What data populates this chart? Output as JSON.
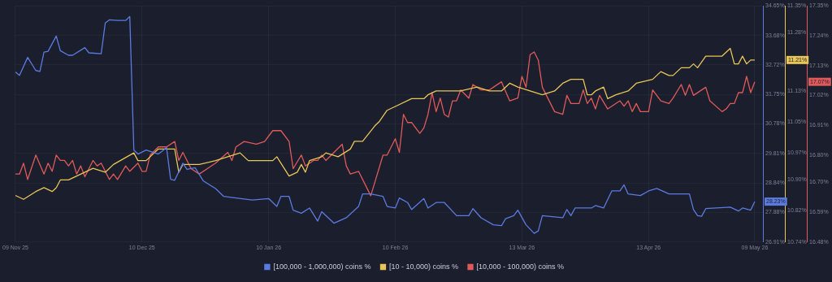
{
  "chart_data": {
    "type": "line",
    "xlim": [
      "2025-11-09",
      "2026-05-11"
    ],
    "xticks": [
      {
        "value": "2025-11-09",
        "label": "09 Nov 25"
      },
      {
        "value": "2025-12-10",
        "label": "10 Dec 25"
      },
      {
        "value": "2026-01-10",
        "label": "10 Jan 26"
      },
      {
        "value": "2026-02-10",
        "label": "10 Feb 26"
      },
      {
        "value": "2026-03-13",
        "label": "13 Mar 26"
      },
      {
        "value": "2026-04-13",
        "label": "13 Apr 26"
      },
      {
        "value": "2026-05-09",
        "label": "09 May 26"
      }
    ],
    "ylim": [
      26.91,
      34.65
    ],
    "yticks": [
      {
        "value": 26.91,
        "label": "26.91%"
      },
      {
        "value": 27.88,
        "label": "27.88%"
      },
      {
        "value": 28.84,
        "label": "28.84%"
      },
      {
        "value": 29.81,
        "label": "29.81%"
      },
      {
        "value": 30.78,
        "label": "30.78%"
      },
      {
        "value": 31.75,
        "label": "31.75%"
      },
      {
        "value": 32.72,
        "label": "32.72%"
      },
      {
        "value": 33.68,
        "label": "33.68%"
      },
      {
        "value": 34.65,
        "label": "34.65%"
      }
    ],
    "y2lim": [
      10.74,
      11.35
    ],
    "y2ticks": [
      {
        "value": 10.74,
        "label": "10.74%"
      },
      {
        "value": 10.82,
        "label": "10.82%"
      },
      {
        "value": 10.9,
        "label": "10.90%"
      },
      {
        "value": 10.97,
        "label": "10.97%"
      },
      {
        "value": 11.05,
        "label": "11.05%"
      },
      {
        "value": 11.13,
        "label": "11.13%"
      },
      {
        "value": 11.28,
        "label": "11.28%"
      },
      {
        "value": 11.35,
        "label": "11.35%"
      }
    ],
    "y3lim": [
      16.48,
      17.35
    ],
    "y3ticks": [
      {
        "value": 16.48,
        "label": "16.48%"
      },
      {
        "value": 16.59,
        "label": "16.59%"
      },
      {
        "value": 16.7,
        "label": "16.70%"
      },
      {
        "value": 16.8,
        "label": "16.80%"
      },
      {
        "value": 16.91,
        "label": "16.91%"
      },
      {
        "value": 17.02,
        "label": "17.02%"
      },
      {
        "value": 17.13,
        "label": "17.13%"
      },
      {
        "value": 17.24,
        "label": "17.24%"
      },
      {
        "value": 17.35,
        "label": "17.35%"
      }
    ],
    "annotations": [
      "28.23%",
      "11.21%",
      "17.07%"
    ],
    "grid": true,
    "legend": "bottom",
    "marker": "none",
    "line_style": "solid",
    "series": [
      {
        "name": "[100,000 - 1,000,000) coins %",
        "color": "#5b7be0",
        "x": [
          "2025-11-09",
          "2025-11-10",
          "2025-11-12",
          "2025-11-14",
          "2025-11-15",
          "2025-11-16",
          "2025-11-17",
          "2025-11-19",
          "2025-11-20",
          "2025-11-22",
          "2025-11-23",
          "2025-11-26",
          "2025-11-27",
          "2025-11-30",
          "2025-12-01",
          "2025-12-02",
          "2025-12-04",
          "2025-12-06",
          "2025-12-07",
          "2025-12-08",
          "2025-12-09",
          "2025-12-11",
          "2025-12-14",
          "2025-12-16",
          "2025-12-17",
          "2025-12-18",
          "2025-12-20",
          "2025-12-21",
          "2025-12-23",
          "2025-12-25",
          "2025-12-28",
          "2025-12-30",
          "2026-01-02",
          "2026-01-06",
          "2026-01-10",
          "2026-01-12",
          "2026-01-13",
          "2026-01-15",
          "2026-01-16",
          "2026-01-18",
          "2026-01-20",
          "2026-01-22",
          "2026-01-23",
          "2026-01-26",
          "2026-01-29",
          "2026-02-01",
          "2026-02-02",
          "2026-02-04",
          "2026-02-07",
          "2026-02-08",
          "2026-02-10",
          "2026-02-11",
          "2026-02-13",
          "2026-02-14",
          "2026-02-17",
          "2026-02-18",
          "2026-02-20",
          "2026-02-22",
          "2026-02-25",
          "2026-02-28",
          "2026-03-01",
          "2026-03-03",
          "2026-03-06",
          "2026-03-08",
          "2026-03-09",
          "2026-03-11",
          "2026-03-12",
          "2026-03-14",
          "2026-03-16",
          "2026-03-17",
          "2026-03-18",
          "2026-03-23",
          "2026-03-24",
          "2026-03-25",
          "2026-03-26",
          "2026-03-30",
          "2026-03-31",
          "2026-04-02",
          "2026-04-04",
          "2026-04-06",
          "2026-04-07",
          "2026-04-08",
          "2026-04-11",
          "2026-04-13",
          "2026-04-15",
          "2026-04-18",
          "2026-04-23",
          "2026-04-24",
          "2026-04-25",
          "2026-04-26",
          "2026-04-27",
          "2026-05-03",
          "2026-05-05",
          "2026-05-06",
          "2026-05-08",
          "2026-05-09"
        ],
        "values": [
          32.48,
          32.37,
          32.96,
          32.53,
          32.5,
          33.13,
          33.16,
          33.66,
          33.18,
          33.03,
          33.03,
          33.28,
          33.11,
          33.08,
          34.09,
          34.19,
          34.17,
          34.17,
          34.3,
          29.92,
          29.79,
          29.92,
          29.79,
          30.0,
          28.96,
          28.93,
          29.49,
          29.29,
          29.34,
          28.91,
          28.66,
          28.4,
          28.35,
          28.28,
          28.33,
          28.07,
          28.4,
          28.4,
          27.95,
          27.85,
          28.02,
          27.59,
          27.9,
          27.52,
          27.7,
          28.07,
          28.48,
          28.48,
          28.4,
          28.07,
          28.02,
          28.35,
          28.2,
          27.97,
          28.33,
          28.02,
          28.2,
          28.2,
          27.77,
          27.77,
          28.0,
          27.7,
          27.47,
          27.44,
          27.67,
          27.77,
          27.95,
          27.47,
          27.19,
          27.27,
          27.77,
          27.7,
          27.97,
          27.77,
          28.02,
          28.02,
          28.1,
          28.02,
          28.58,
          28.58,
          28.78,
          28.48,
          28.43,
          28.58,
          28.66,
          28.48,
          28.48,
          27.97,
          27.77,
          27.75,
          28.0,
          28.05,
          27.92,
          28.02,
          27.95,
          28.23
        ]
      },
      {
        "name": "[10 - 10,000) coins %",
        "color": "#e8c658",
        "axis": "y2",
        "x": [
          "2025-11-09",
          "2025-11-11",
          "2025-11-14",
          "2025-11-16",
          "2025-11-18",
          "2025-11-19",
          "2025-11-20",
          "2025-11-22",
          "2025-11-24",
          "2025-11-26",
          "2025-11-28",
          "2025-12-01",
          "2025-12-03",
          "2025-12-08",
          "2025-12-09",
          "2025-12-11",
          "2025-12-14",
          "2025-12-16",
          "2025-12-18",
          "2025-12-19",
          "2025-12-20",
          "2025-12-24",
          "2025-12-28",
          "2025-12-31",
          "2026-01-03",
          "2026-01-05",
          "2026-01-09",
          "2026-01-11",
          "2026-01-12",
          "2026-01-15",
          "2026-01-17",
          "2026-01-18",
          "2026-01-19",
          "2026-01-20",
          "2026-01-23",
          "2026-01-24",
          "2026-01-27",
          "2026-01-30",
          "2026-01-31",
          "2026-02-02",
          "2026-02-05",
          "2026-02-06",
          "2026-02-08",
          "2026-02-10",
          "2026-02-14",
          "2026-02-17",
          "2026-02-18",
          "2026-02-20",
          "2026-02-23",
          "2026-02-26",
          "2026-03-02",
          "2026-03-05",
          "2026-03-08",
          "2026-03-10",
          "2026-03-12",
          "2026-03-15",
          "2026-03-18",
          "2026-03-21",
          "2026-03-23",
          "2026-03-25",
          "2026-03-28",
          "2026-03-29",
          "2026-03-30",
          "2026-03-31",
          "2026-04-02",
          "2026-04-03",
          "2026-04-05",
          "2026-04-08",
          "2026-04-10",
          "2026-04-14",
          "2026-04-15",
          "2026-04-16",
          "2026-04-18",
          "2026-04-19",
          "2026-04-21",
          "2026-04-23",
          "2026-04-24",
          "2026-04-25",
          "2026-04-27",
          "2026-04-29",
          "2026-05-01",
          "2026-05-03",
          "2026-05-04",
          "2026-05-05",
          "2026-05-06",
          "2026-05-07",
          "2026-05-08",
          "2026-05-09"
        ],
        "values": [
          10.86,
          10.85,
          10.87,
          10.88,
          10.87,
          10.88,
          10.9,
          10.9,
          10.91,
          10.92,
          10.93,
          10.92,
          10.94,
          10.97,
          10.95,
          10.95,
          10.98,
          10.98,
          10.98,
          10.92,
          10.94,
          10.94,
          10.95,
          10.96,
          10.97,
          10.95,
          10.95,
          10.95,
          10.96,
          10.91,
          10.92,
          10.94,
          10.92,
          10.95,
          10.96,
          10.97,
          10.96,
          10.98,
          11.0,
          11.0,
          11.04,
          11.05,
          11.08,
          11.09,
          11.11,
          11.11,
          11.12,
          11.13,
          11.13,
          11.13,
          11.14,
          11.13,
          11.13,
          11.15,
          11.14,
          11.13,
          11.12,
          11.13,
          11.15,
          11.16,
          11.16,
          11.12,
          11.12,
          11.13,
          11.14,
          11.11,
          11.12,
          11.13,
          11.15,
          11.16,
          11.17,
          11.18,
          11.17,
          11.17,
          11.19,
          11.19,
          11.2,
          11.19,
          11.22,
          11.22,
          11.22,
          11.24,
          11.2,
          11.2,
          11.22,
          11.2,
          11.21,
          11.21
        ]
      },
      {
        "name": "[10,000 - 100,000) coins %",
        "color": "#e05a5a",
        "axis": "y3",
        "x": [
          "2025-11-09",
          "2025-11-10",
          "2025-11-11",
          "2025-11-12",
          "2025-11-14",
          "2025-11-16",
          "2025-11-17",
          "2025-11-18",
          "2025-11-19",
          "2025-11-20",
          "2025-11-21",
          "2025-11-22",
          "2025-11-23",
          "2025-11-24",
          "2025-11-25",
          "2025-11-26",
          "2025-11-28",
          "2025-11-29",
          "2025-11-30",
          "2025-12-02",
          "2025-12-03",
          "2025-12-04",
          "2025-12-06",
          "2025-12-07",
          "2025-12-09",
          "2025-12-10",
          "2025-12-11",
          "2025-12-12",
          "2025-12-14",
          "2025-12-16",
          "2025-12-18",
          "2025-12-19",
          "2025-12-20",
          "2025-12-22",
          "2025-12-24",
          "2025-12-28",
          "2025-12-31",
          "2026-01-01",
          "2026-01-02",
          "2026-01-04",
          "2026-01-07",
          "2026-01-09",
          "2026-01-11",
          "2026-01-13",
          "2026-01-15",
          "2026-01-16",
          "2026-01-18",
          "2026-01-19",
          "2026-01-21",
          "2026-01-22",
          "2026-01-23",
          "2026-01-24",
          "2026-01-26",
          "2026-01-28",
          "2026-01-29",
          "2026-01-30",
          "2026-02-01",
          "2026-02-04",
          "2026-02-07",
          "2026-02-08",
          "2026-02-10",
          "2026-02-11",
          "2026-02-12",
          "2026-02-13",
          "2026-02-14",
          "2026-02-16",
          "2026-02-17",
          "2026-02-18",
          "2026-02-19",
          "2026-02-20",
          "2026-02-21",
          "2026-02-22",
          "2026-02-23",
          "2026-02-24",
          "2026-02-25",
          "2026-02-26",
          "2026-02-28",
          "2026-03-01",
          "2026-03-03",
          "2026-03-05",
          "2026-03-06",
          "2026-03-08",
          "2026-03-10",
          "2026-03-12",
          "2026-03-13",
          "2026-03-14",
          "2026-03-15",
          "2026-03-16",
          "2026-03-17",
          "2026-03-18",
          "2026-03-20",
          "2026-03-21",
          "2026-03-23",
          "2026-03-24",
          "2026-03-25",
          "2026-03-27",
          "2026-03-28",
          "2026-03-29",
          "2026-03-30",
          "2026-03-31",
          "2026-04-01",
          "2026-04-03",
          "2026-04-06",
          "2026-04-07",
          "2026-04-08",
          "2026-04-09",
          "2026-04-10",
          "2026-04-11",
          "2026-04-13",
          "2026-04-14",
          "2026-04-16",
          "2026-04-18",
          "2026-04-19",
          "2026-04-21",
          "2026-04-22",
          "2026-04-23",
          "2026-04-24",
          "2026-04-27",
          "2026-04-28",
          "2026-05-01",
          "2026-05-02",
          "2026-05-03",
          "2026-05-04",
          "2026-05-05",
          "2026-05-06",
          "2026-05-07",
          "2026-05-08",
          "2026-05-09"
        ],
        "values": [
          16.73,
          16.73,
          16.77,
          16.71,
          16.8,
          16.73,
          16.77,
          16.74,
          16.8,
          16.78,
          16.78,
          16.76,
          16.78,
          16.73,
          16.76,
          16.72,
          16.78,
          16.76,
          16.77,
          16.71,
          16.73,
          16.71,
          16.76,
          16.74,
          16.77,
          16.74,
          16.74,
          16.8,
          16.83,
          16.83,
          16.85,
          16.78,
          16.81,
          16.75,
          16.73,
          16.77,
          16.81,
          16.78,
          16.83,
          16.85,
          16.84,
          16.85,
          16.89,
          16.89,
          16.85,
          16.75,
          16.8,
          16.76,
          16.78,
          16.78,
          16.8,
          16.78,
          16.81,
          16.84,
          16.76,
          16.73,
          16.74,
          16.65,
          16.8,
          16.8,
          16.86,
          16.81,
          16.95,
          16.92,
          16.92,
          16.88,
          16.9,
          16.95,
          17.03,
          16.96,
          17.01,
          16.95,
          16.94,
          17.0,
          17.0,
          17.04,
          17.01,
          17.06,
          17.04,
          17.04,
          17.05,
          17.07,
          17.0,
          17.01,
          17.09,
          17.05,
          17.17,
          17.18,
          17.15,
          17.05,
          16.99,
          16.96,
          16.95,
          17.02,
          16.99,
          16.99,
          17.04,
          16.99,
          17.01,
          16.97,
          17.02,
          16.97,
          17.0,
          16.98,
          17.0,
          16.96,
          16.99,
          16.96,
          16.96,
          17.04,
          17.0,
          16.99,
          17.01,
          17.06,
          17.02,
          17.06,
          17.02,
          17.05,
          17.0,
          16.96,
          16.97,
          16.99,
          16.99,
          17.03,
          17.03,
          17.09,
          17.03,
          17.07
        ]
      }
    ]
  }
}
